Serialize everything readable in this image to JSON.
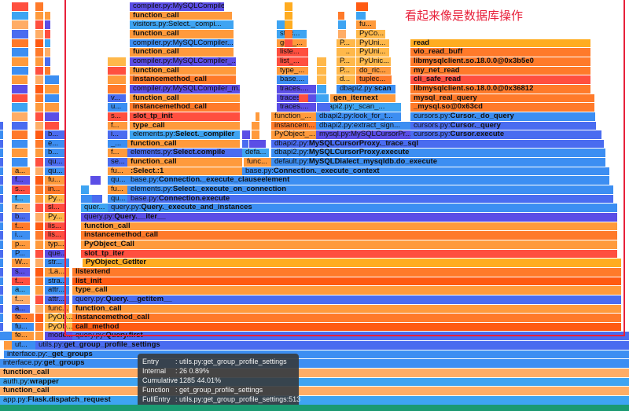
{
  "annotation": "看起来像是数据库操作",
  "palette": {
    "B": "#3c8ef2",
    "I": "#4a6cf0",
    "P": "#5b4ee6",
    "L": "#3ea4f2",
    "O": "#ff9a3c",
    "Y": "#ffb84a",
    "D": "#ff7a2a",
    "R": "#ff4f3f",
    "X": "#ff5a12",
    "A": "#ffac20",
    "Lo": "#ffad66"
  },
  "frames": [
    "app.py:Flask.dispatch_request",
    "function_call",
    "auth.py:wrapper",
    "function_call",
    "interface.py:get_groups",
    "interface.py:_get_groups",
    "utils.py:get_group_profile_settings",
    "query.py:Query.first",
    "call_method",
    "instancemethod_call",
    "function_call",
    "query.py:Query.__getitem__",
    "type_call",
    "list_init",
    "listextend",
    "PyObject_GetIter",
    "slot_tp_iter",
    "PyObject_Call",
    "instancemethod_call",
    "function_call",
    "query.py:Query.__iter__",
    "query.py:Query._execute_and_instances",
    "quer...",
    "base.py:Connection.execute",
    "elements.py:Select._execute_on_connection",
    "base.py:Connection._execute_clauseelement",
    ":Select.:1",
    "base.py:Connection._execute_context",
    "function_call",
    "func...",
    "default.py:MySQLDialect_mysqldb.do_execute",
    "elements.py:Select.compile",
    "defa...",
    "dbapi2.py:MySQLCursorProxy.execute",
    "function_call",
    "dbapi2.py:MySQLCursorProxy._trace_sql",
    "elements.py:Select._compiler",
    "PyObject_...",
    "mysql.py:MySQLCursorPr...",
    "cursors.py:Cursor.execute",
    "type_call",
    "instancem...",
    "dbapi2.py:extract_sign...",
    "cursors.py:Cursor._query",
    "slot_tp_init",
    "function_...",
    "dbapi2.py:look_for_t...",
    "cursors.py:Cursor._do_query",
    "instancemethod_call",
    "traces....",
    "dbapi2.py:_scan_...",
    "_mysql.so@0x63cd",
    "function_call",
    "traces....",
    "gen_iternext",
    "mysql_real_query",
    "compiler.py:MySQLCompiler_m...",
    "traces....",
    "dbapi2.py:scan",
    "libmysqlclient.so.18.0.0@0x36812",
    "instancemethod_call",
    "base....",
    "d...",
    "tuplec...",
    "cli_safe_read",
    "function_call",
    "type_...",
    "P...",
    "do_ric...",
    "my_net_read",
    "compiler.py:MySQLCompiler_...",
    "list_...",
    "P...",
    "PyUnic...",
    "libmysqlclient.so.18.0.0@0x3b5e0",
    "function_call",
    "liste...",
    "P...",
    "PyUni...",
    "vio_read_buff",
    "compiler.py:MySQLCompiler...",
    "gen_...",
    "P...",
    "PyUni...",
    "read",
    "function_call",
    "stac...",
    "PyCo...",
    "visitors.py:Select._compi...",
    "fu...",
    "function_call",
    "compiler.py:MySQLCompiler..."
  ],
  "left_columns": {
    "col_b": [
      "fe...",
      "fu...",
      "fe...",
      "a...",
      "f...",
      "a...",
      "f...",
      "s...",
      "W...",
      "P...",
      "p...",
      "i...",
      "f...",
      "b...",
      "r...",
      "f...",
      "s...",
      "f...",
      "a..."
    ],
    "col_d": [
      "mode...",
      "PyOb...",
      "PyOb...",
      "func...",
      "attr...",
      "attr...",
      "stra...",
      ":La...",
      "str...",
      "que...",
      "typ...",
      "lis...",
      "lis...",
      "Py...",
      "sl...",
      "Py...",
      "in...",
      "fu...",
      "qu...",
      "qu...",
      "b...",
      "e...",
      "b..."
    ],
    "col_e": [
      "qu...",
      "fu...",
      "qu...",
      "fu...",
      "se...",
      "f...",
      "_...",
      "i...",
      "f...",
      "s...",
      "u...",
      "v..."
    ],
    "col_b_bottom": "ut..."
  },
  "tooltip": {
    "entry_key": "Entry",
    "entry_val": ": utils.py:get_group_profile_settings",
    "internal_key": "Internal",
    "internal_val": ": 26  0.89%",
    "cumulative_key": "Cumulative",
    "cumulative_val": ": 1285  44.01%",
    "function_key": "Function",
    "function_val": ": get_group_profile_settings",
    "fullentry_key": "FullEntry",
    "fullentry_val": ": utils.py:get_group_profile_settings:513"
  }
}
